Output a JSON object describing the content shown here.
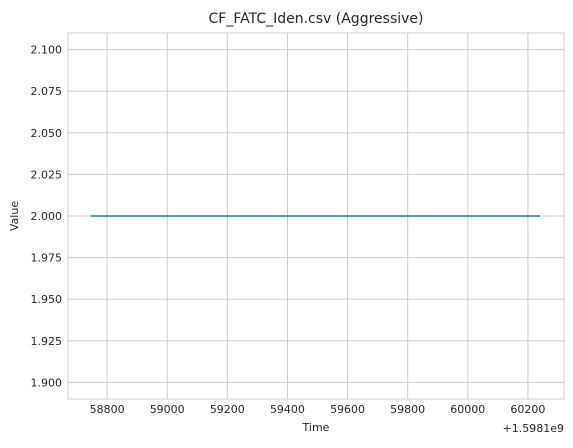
{
  "chart_data": {
    "type": "line",
    "title": "CF_FATC_Iden.csv (Aggressive)",
    "xlabel": "Time",
    "ylabel": "Value",
    "x_offset_label": "+1.5981e9",
    "xlim": [
      58670,
      60320
    ],
    "ylim": [
      1.89,
      2.11
    ],
    "xticks": [
      58800,
      59000,
      59200,
      59400,
      59600,
      59800,
      60000,
      60200
    ],
    "xtick_labels": [
      "58800",
      "59000",
      "59200",
      "59400",
      "59600",
      "59800",
      "60000",
      "60200"
    ],
    "yticks": [
      1.9,
      1.925,
      1.95,
      1.975,
      2.0,
      2.025,
      2.05,
      2.075,
      2.1
    ],
    "ytick_labels": [
      "1.900",
      "1.925",
      "1.950",
      "1.975",
      "2.000",
      "2.025",
      "2.050",
      "2.075",
      "2.100"
    ],
    "grid": true,
    "series": [
      {
        "name": "Value",
        "color": "#1f77b4",
        "x": [
          58745,
          60240
        ],
        "y": [
          2.0,
          2.0
        ]
      }
    ]
  }
}
